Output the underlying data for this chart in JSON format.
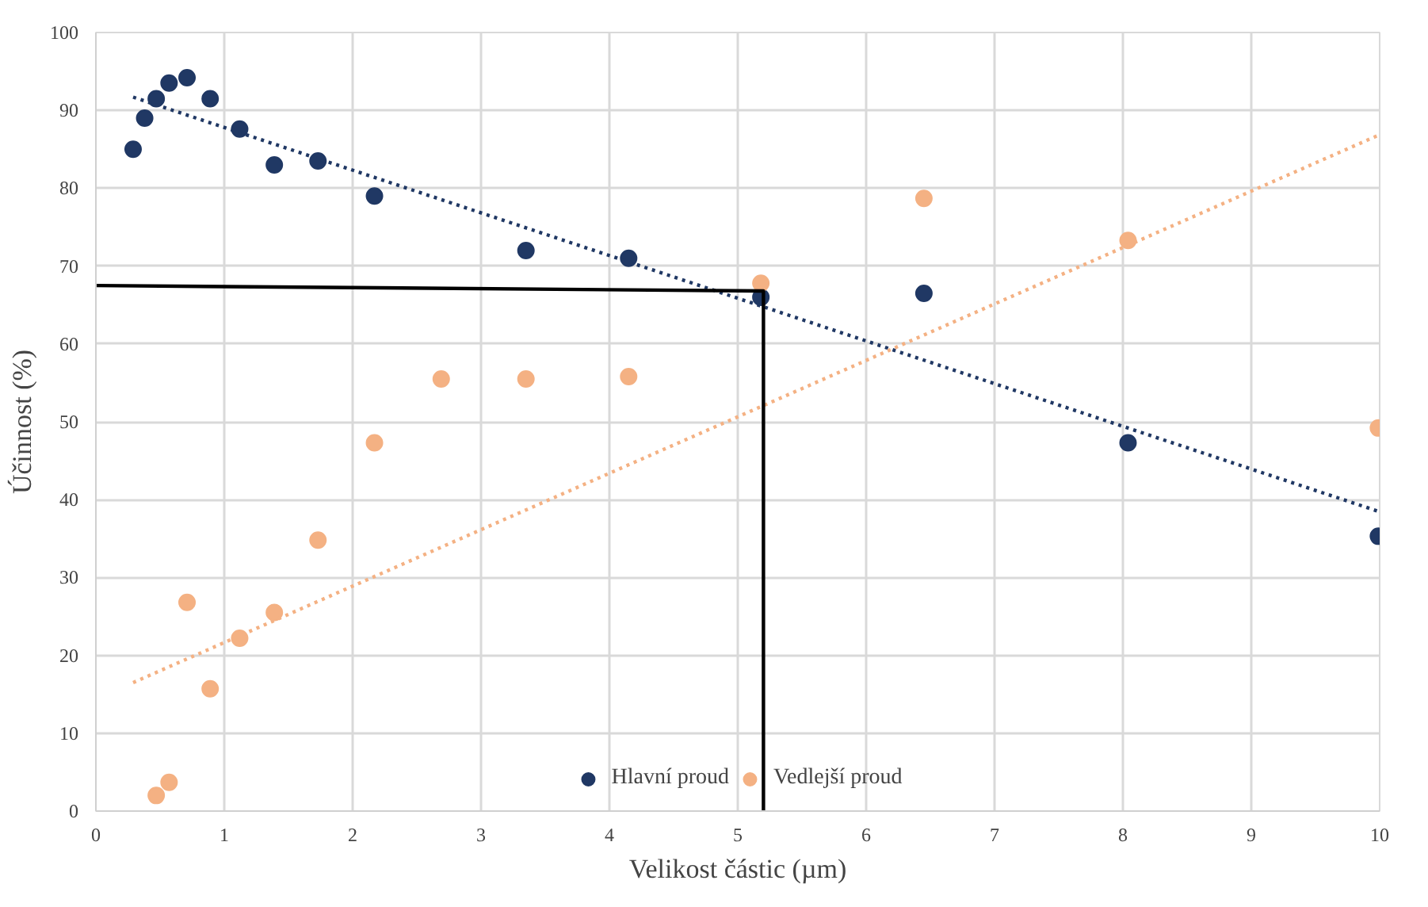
{
  "chart_data": {
    "type": "scatter",
    "xlabel": "Velikost částic (µm)",
    "ylabel": "Účinnost (%)",
    "xlim": [
      0,
      10
    ],
    "xticks": [
      0,
      1,
      2,
      3,
      4,
      5,
      6,
      7,
      8,
      9,
      10
    ],
    "ylim": [
      0,
      100
    ],
    "yticks": [
      0,
      10,
      20,
      30,
      40,
      50,
      60,
      70,
      80,
      90,
      100
    ],
    "grid": true,
    "legend": "bottom",
    "marker": "circle",
    "series": [
      {
        "name": "Hlavní proud",
        "color": "#203864",
        "x": [
          0.29,
          0.38,
          0.47,
          0.57,
          0.71,
          0.89,
          1.12,
          1.39,
          1.73,
          2.17,
          3.35,
          4.15,
          5.18,
          6.45,
          8.04,
          9.99
        ],
        "values": [
          85,
          89,
          91.5,
          93.5,
          94.2,
          91.5,
          87.6,
          83,
          83.5,
          79,
          72,
          71,
          66,
          66.5,
          47.3,
          35.3
        ]
      },
      {
        "name": "Vedlejší proud",
        "color": "#f4b183",
        "x": [
          0.47,
          0.57,
          0.71,
          0.89,
          1.12,
          1.39,
          1.73,
          2.17,
          2.69,
          3.35,
          4.15,
          5.18,
          6.45,
          8.04,
          9.99
        ],
        "values": [
          2,
          3.7,
          26.8,
          15.7,
          22.2,
          25.5,
          34.8,
          47.3,
          55.5,
          55.5,
          55.8,
          67.8,
          78.7,
          73.3,
          49.2
        ]
      },
      {
        "type": "line",
        "color": "#203864",
        "line_style": "dotted",
        "marker": "none",
        "x": [
          0.29,
          9.99
        ],
        "values": [
          91.7,
          38.5
        ]
      },
      {
        "type": "line",
        "color": "#f4b183",
        "line_style": "dotted",
        "marker": "none",
        "x": [
          0.29,
          9.99
        ],
        "values": [
          16.5,
          86.8
        ]
      },
      {
        "type": "line",
        "color": "#000000",
        "line_style": "solid",
        "marker": "none",
        "x": [
          0,
          5.2,
          5.2
        ],
        "values": [
          67.5,
          66.8,
          0
        ]
      }
    ]
  }
}
